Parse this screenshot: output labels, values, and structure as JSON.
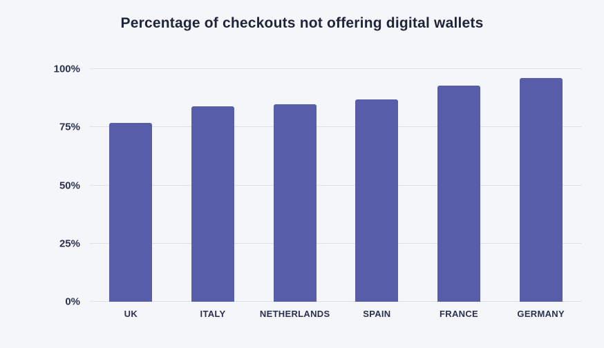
{
  "chart_data": {
    "type": "bar",
    "title": "Percentage of checkouts not offering digital wallets",
    "categories": [
      "UK",
      "ITALY",
      "NETHERLANDS",
      "SPAIN",
      "FRANCE",
      "GERMANY"
    ],
    "values": [
      77,
      84,
      85,
      87,
      93,
      96
    ],
    "unit": "%",
    "xlabel": "",
    "ylabel": "",
    "ylim": [
      0,
      100
    ],
    "yticks": [
      0,
      25,
      50,
      75,
      100
    ],
    "ytick_labels": [
      "0%",
      "25%",
      "50%",
      "75%",
      "100%"
    ],
    "grid": true,
    "legend_position": "none",
    "colors": {
      "bar": "#575da8",
      "background": "#f5f6fa",
      "grid": "#dcdfe9",
      "text": "#2b3050",
      "title_text": "#1f2438"
    }
  }
}
